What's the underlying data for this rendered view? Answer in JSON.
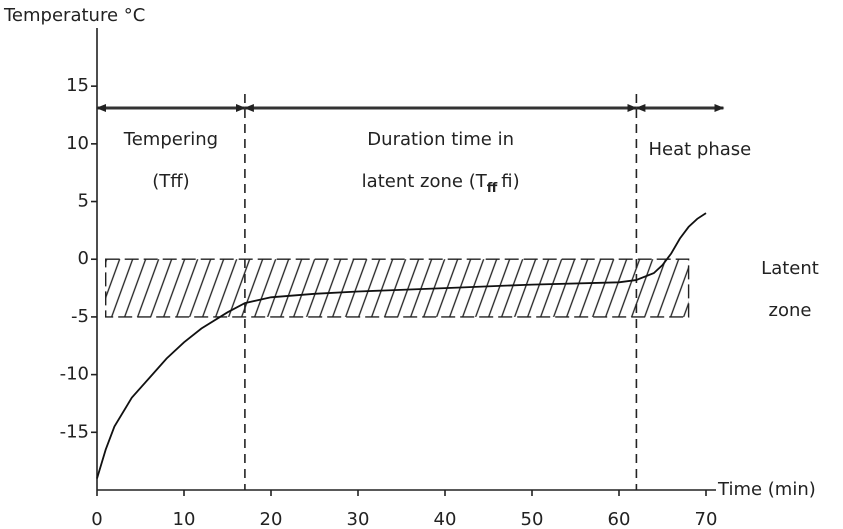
{
  "chart_data": {
    "type": "line",
    "y_label": "Temperature °C",
    "x_label": "Time (min)",
    "xlim": [
      0,
      70
    ],
    "ylim": [
      -20,
      19
    ],
    "xticks": [
      0,
      10,
      20,
      30,
      40,
      50,
      60,
      70
    ],
    "yticks": [
      -15,
      -10,
      -5,
      0,
      5,
      10,
      15
    ],
    "series": [
      {
        "color": "#111111",
        "x": [
          0,
          1,
          2,
          4,
          6,
          8,
          10,
          12,
          15,
          17,
          20,
          25,
          30,
          40,
          50,
          60,
          62,
          64,
          65,
          66,
          67,
          68,
          69,
          70
        ],
        "values": [
          -19,
          -16.5,
          -14.5,
          -12,
          -10.3,
          -8.6,
          -7.2,
          -6,
          -4.6,
          -3.8,
          -3.3,
          -3,
          -2.8,
          -2.5,
          -2.2,
          -2,
          -1.8,
          -1.2,
          -0.5,
          0.5,
          1.8,
          2.8,
          3.5,
          4
        ]
      }
    ],
    "boundaries": [
      17,
      62
    ],
    "phases": [
      {
        "lines": [
          "Tempering",
          "(Tff)"
        ],
        "start": 0,
        "end": 17
      },
      {
        "lines": [
          "Duration time in"
        ],
        "sub_line": {
          "text": "latent zone (T",
          "sub": "ff",
          "tail": "fi)"
        },
        "start": 17,
        "end": 62
      },
      {
        "lines": [
          "Heat phase"
        ],
        "start": 62,
        "end": 72
      }
    ],
    "latent_zone": {
      "xmin": 1,
      "xmax": 68,
      "ymin": -5,
      "ymax": 0,
      "lines": [
        "Latent",
        "zone"
      ]
    }
  }
}
